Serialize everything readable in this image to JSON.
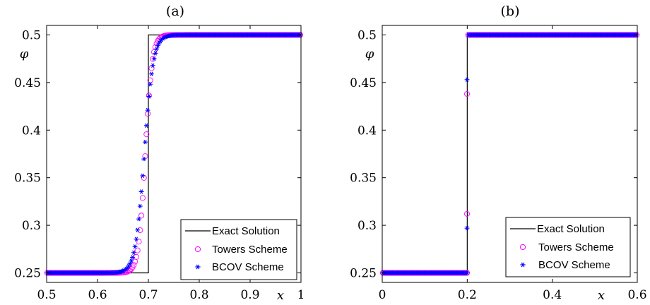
{
  "chart_data": [
    {
      "type": "line",
      "title": "(a)",
      "xlabel": "x",
      "ylabel": "φ",
      "xlim": [
        0.5,
        1.0
      ],
      "ylim": [
        0.24,
        0.51
      ],
      "xticks": [
        "0.5",
        "0.6",
        "0.7",
        "0.8",
        "0.9",
        "1"
      ],
      "xtick_values": [
        0.5,
        0.6,
        0.7,
        0.8,
        0.9,
        1.0
      ],
      "yticks": [
        "0.25",
        "0.3",
        "0.35",
        "0.4",
        "0.45",
        "0.5"
      ],
      "ytick_values": [
        0.25,
        0.3,
        0.35,
        0.4,
        0.45,
        0.5
      ],
      "legend_position": "bottom-right",
      "series": [
        {
          "name": "Exact Solution",
          "marker": "line",
          "color": "#000000",
          "x": [
            0.5,
            0.7,
            0.7,
            1.0
          ],
          "y": [
            0.25,
            0.25,
            0.5,
            0.5
          ]
        },
        {
          "name": "Towers Scheme",
          "marker": "circle",
          "color": "#ff00ff",
          "profile": {
            "type": "tanh",
            "x_start": 0.5,
            "x_end": 1.0,
            "n": 200,
            "center": 0.694,
            "width": 0.0135,
            "low": 0.25,
            "high": 0.5
          }
        },
        {
          "name": "BCOV Scheme",
          "marker": "star",
          "color": "#0000ff",
          "profile": {
            "type": "tanh",
            "x_start": 0.5,
            "x_end": 1.0,
            "n": 200,
            "center": 0.692,
            "width": 0.0175,
            "low": 0.25,
            "high": 0.5
          }
        }
      ]
    },
    {
      "type": "line",
      "title": "(b)",
      "xlabel": "x",
      "ylabel": "φ",
      "xlim": [
        0.0,
        0.6
      ],
      "ylim": [
        0.24,
        0.51
      ],
      "xticks": [
        "0",
        "0.2",
        "0.4",
        "0.6"
      ],
      "xtick_values": [
        0.0,
        0.2,
        0.4,
        0.6
      ],
      "yticks": [
        "0.25",
        "0.3",
        "0.35",
        "0.4",
        "0.45",
        "0.5"
      ],
      "ytick_values": [
        0.25,
        0.3,
        0.35,
        0.4,
        0.45,
        0.5
      ],
      "legend_position": "bottom-right",
      "series": [
        {
          "name": "Exact Solution",
          "marker": "line",
          "color": "#000000",
          "x": [
            0.0,
            0.2,
            0.2,
            0.6
          ],
          "y": [
            0.25,
            0.25,
            0.5,
            0.5
          ]
        },
        {
          "name": "Towers Scheme",
          "marker": "circle",
          "color": "#ff00ff",
          "profile": {
            "type": "step",
            "x_start": 0.0,
            "x_end": 0.6,
            "n": 200,
            "step_at": 0.2,
            "low": 0.25,
            "high": 0.5
          },
          "extra_points": [
            [
              0.1995,
              0.312
            ],
            [
              0.1995,
              0.438
            ]
          ]
        },
        {
          "name": "BCOV Scheme",
          "marker": "star",
          "color": "#0000ff",
          "profile": {
            "type": "step",
            "x_start": 0.0,
            "x_end": 0.6,
            "n": 200,
            "step_at": 0.2,
            "low": 0.25,
            "high": 0.5
          },
          "extra_points": [
            [
              0.1995,
              0.297
            ],
            [
              0.1995,
              0.453
            ]
          ]
        }
      ]
    }
  ]
}
